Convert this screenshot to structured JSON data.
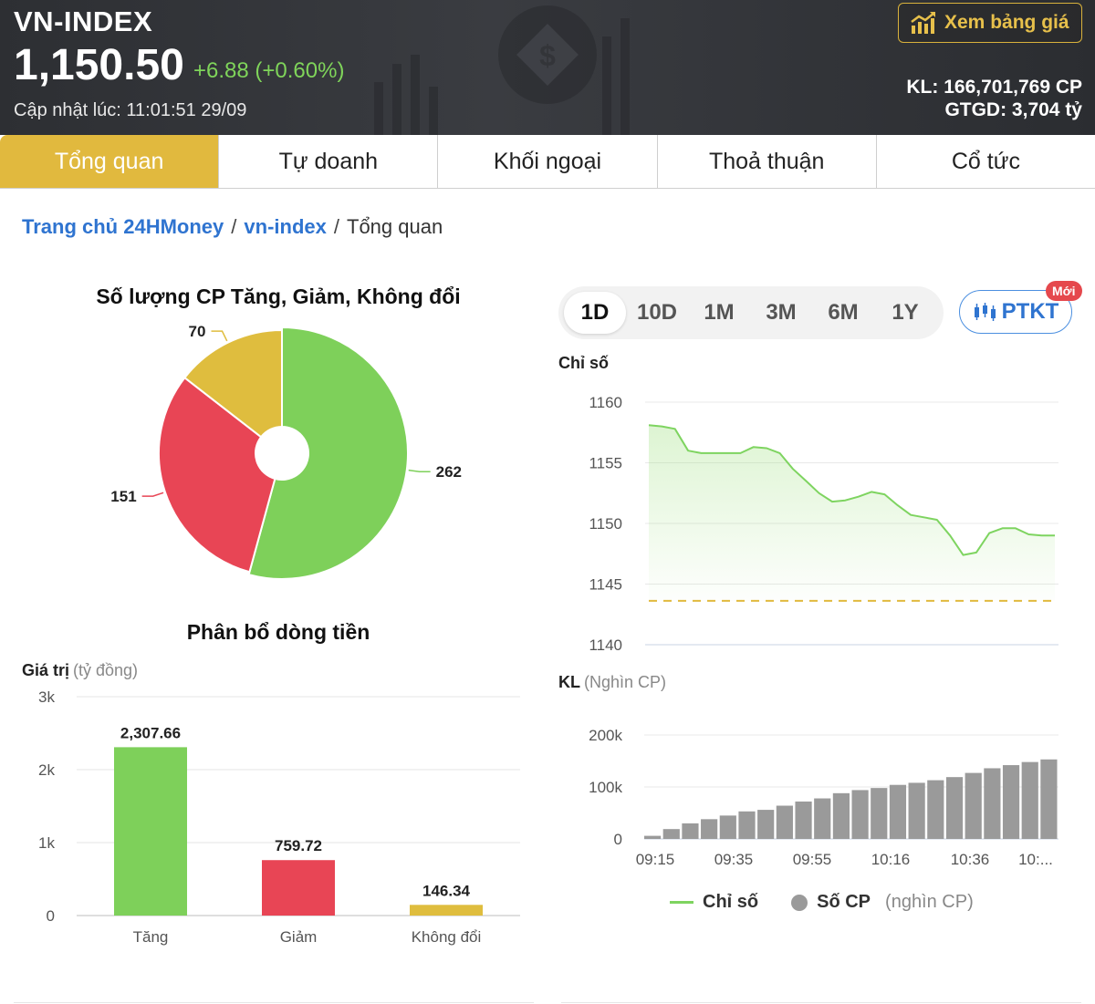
{
  "header": {
    "index_name": "VN-INDEX",
    "price": "1,150.50",
    "change": "+6.88 (+0.60%)",
    "updated": "Cập nhật lúc: 11:01:51 29/09",
    "price_board_label": "Xem bảng giá",
    "volume": "KL: 166,701,769 CP",
    "value": "GTGD: 3,704 tỷ"
  },
  "tabs": [
    {
      "label": "Tổng quan",
      "active": true
    },
    {
      "label": "Tự doanh",
      "active": false
    },
    {
      "label": "Khối ngoại",
      "active": false
    },
    {
      "label": "Thoả thuận",
      "active": false
    },
    {
      "label": "Cổ tức",
      "active": false
    }
  ],
  "breadcrumb": {
    "home": "Trang chủ 24HMoney",
    "sep": "/",
    "index": "vn-index",
    "current": "Tổng quan"
  },
  "periods": {
    "items": [
      "1D",
      "10D",
      "1M",
      "3M",
      "6M",
      "1Y"
    ],
    "active": "1D",
    "ptkt_label": "PTKT",
    "new_badge": "Mới"
  },
  "colors": {
    "up": "#7ed05a",
    "down": "#e84555",
    "flat": "#dfbd3e",
    "accent": "#e1b93e",
    "volume": "#9a9a9a",
    "link": "#2f74d0"
  },
  "chart_data": [
    {
      "type": "pie",
      "title": "Số lượng CP Tăng, Giảm, Không đổi",
      "slices": [
        {
          "value": 262,
          "color": "#7ed05a"
        },
        {
          "value": 151,
          "color": "#e84555"
        },
        {
          "value": 70,
          "color": "#dfbd3e"
        }
      ]
    },
    {
      "type": "bar",
      "title": "Phân bổ dòng tiền",
      "ylabel": "Giá trị",
      "yunit": "(tỷ đồng)",
      "categories": [
        "Tăng",
        "Giảm",
        "Không đổi"
      ],
      "values": [
        2307.66,
        759.72,
        146.34
      ],
      "value_labels": [
        "2,307.66",
        "759.72",
        "146.34"
      ],
      "colors": [
        "#7ed05a",
        "#e84555",
        "#dfbd3e"
      ],
      "ylim": [
        0,
        3000
      ],
      "yticks": [
        0,
        1000,
        2000,
        3000
      ],
      "ytick_labels": [
        "0",
        "1k",
        "2k",
        "3k"
      ]
    },
    {
      "type": "line",
      "ylabel": "Chỉ số",
      "series_label": "Chỉ số",
      "ylim": [
        1140,
        1160
      ],
      "yticks": [
        1140,
        1145,
        1150,
        1155,
        1160
      ],
      "reference_line": 1143.62,
      "values": [
        1158.1,
        1158.0,
        1157.8,
        1156.0,
        1155.8,
        1155.8,
        1155.8,
        1155.8,
        1156.3,
        1156.2,
        1155.8,
        1154.5,
        1153.5,
        1152.5,
        1151.8,
        1151.9,
        1152.2,
        1152.6,
        1152.4,
        1151.5,
        1150.7,
        1150.5,
        1150.3,
        1149.0,
        1147.4,
        1147.6,
        1149.2,
        1149.6,
        1149.6,
        1149.1,
        1149.0,
        1149.0
      ]
    },
    {
      "type": "bar",
      "ylabel": "KL",
      "yunit": "(Nghìn CP)",
      "series_label": "Số CP",
      "series_unit": "(nghìn CP)",
      "ylim": [
        0,
        200000
      ],
      "yticks": [
        0,
        100000,
        200000
      ],
      "ytick_labels": [
        "0",
        "100k",
        "200k"
      ],
      "xtick_labels": [
        "09:15",
        "09:35",
        "09:55",
        "10:16",
        "10:36",
        "10:..."
      ],
      "values": [
        6000,
        19000,
        30000,
        38000,
        45000,
        53000,
        56000,
        64000,
        72000,
        78000,
        88000,
        94000,
        98000,
        104000,
        108000,
        113000,
        119000,
        127000,
        136000,
        142000,
        148000,
        153000
      ]
    }
  ]
}
